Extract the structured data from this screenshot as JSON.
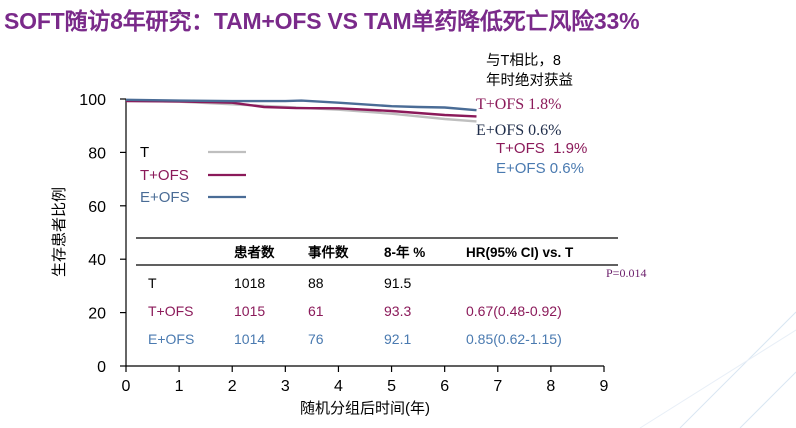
{
  "slide": {
    "title": "SOFT随访8年研究：TAM+OFS VS TAM单药降低死亡风险33%"
  },
  "chart_data": {
    "type": "line",
    "title": "",
    "xlabel": "随机分组后时间(年)",
    "ylabel": "生存患者比例",
    "xlim": [
      0,
      9
    ],
    "ylim": [
      0,
      100
    ],
    "x_ticks": [
      "0",
      "1",
      "2",
      "3",
      "4",
      "5",
      "6",
      "7",
      "8",
      "9"
    ],
    "y_ticks": [
      "0",
      "20",
      "40",
      "60",
      "80",
      "100"
    ],
    "series": [
      {
        "name": "T",
        "color": "#bfbfbf",
        "x": [
          0,
          1,
          2,
          3,
          4,
          5,
          6,
          6.6
        ],
        "y": [
          99.4,
          99.0,
          98.0,
          97.0,
          96.0,
          94.5,
          92.5,
          91.6
        ]
      },
      {
        "name": "T+OFS",
        "color": "#8b1a5a",
        "x": [
          0,
          1,
          2,
          2.6,
          3.2,
          4,
          5,
          6,
          6.6
        ],
        "y": [
          99.2,
          99.1,
          98.6,
          97.0,
          96.6,
          96.5,
          95.5,
          94.0,
          93.5
        ]
      },
      {
        "name": "E+OFS",
        "color": "#4a6c96",
        "x": [
          0,
          1,
          2,
          3,
          3.3,
          4,
          5,
          5.5,
          6,
          6.6
        ],
        "y": [
          99.7,
          99.4,
          99.2,
          99.2,
          99.4,
          98.6,
          97.3,
          97.0,
          96.8,
          95.8
        ]
      }
    ],
    "legend": [
      "T",
      "T+OFS",
      "E+OFS"
    ],
    "benefit_header": [
      "与T相比，8",
      "年时绝对获益"
    ],
    "benefit_labels": [
      {
        "text": "T+OFS 1.8%",
        "color": "#8b1a5a"
      },
      {
        "text": "E+OFS 0.6%",
        "color": "#1f2d4a"
      },
      {
        "text": "T+OFS  1.9%",
        "color": "#8b1a5a"
      },
      {
        "text": "E+OFS 0.6%",
        "color": "#4a7ab0"
      }
    ],
    "table": {
      "headers": [
        "患者数",
        "事件数",
        "8-年 %",
        "HR(95% CI) vs. T"
      ],
      "rows": [
        {
          "name": "T",
          "cells": [
            "1018",
            "88",
            "91.5",
            ""
          ],
          "color": "#000000"
        },
        {
          "name": "T+OFS",
          "cells": [
            "1015",
            "61",
            "93.3",
            "0.67(0.48-0.92)"
          ],
          "color": "#8b1a5a"
        },
        {
          "name": "E+OFS",
          "cells": [
            "1014",
            "76",
            "92.1",
            "0.85(0.62-1.15)"
          ],
          "color": "#4a7ab0"
        }
      ]
    },
    "p_value": "P=0.014"
  }
}
